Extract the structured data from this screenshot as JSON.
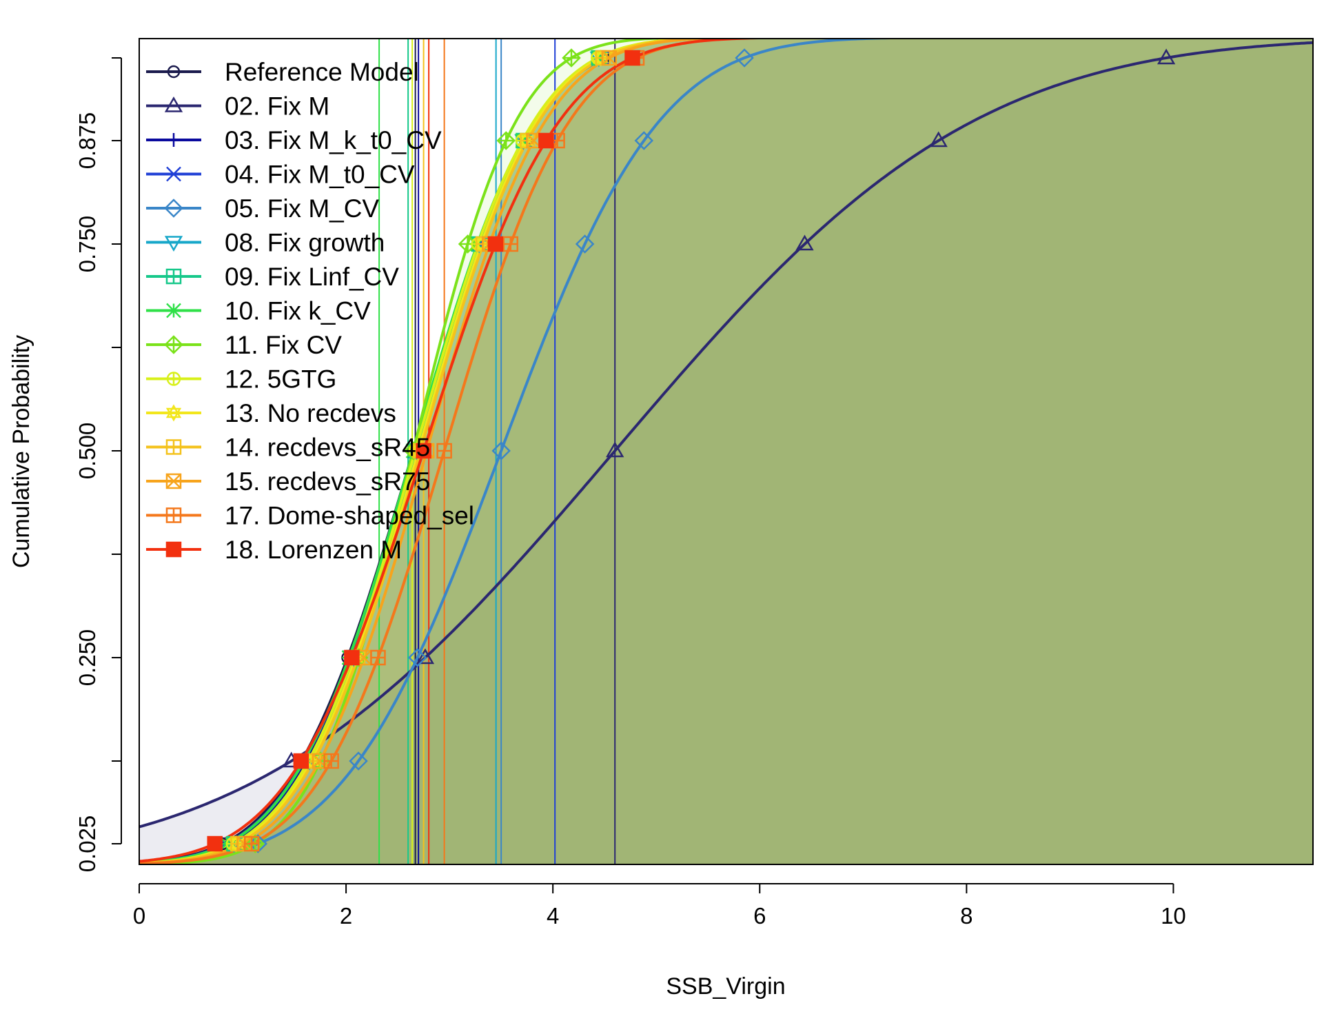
{
  "chart_data": {
    "type": "line",
    "title": "",
    "xlabel": "SSB_Virgin",
    "ylabel": "Cumulative Probability",
    "xlim": [
      0,
      11.35
    ],
    "ylim": [
      0,
      1
    ],
    "x_ticks": [
      "0",
      "2",
      "4",
      "6",
      "8",
      "10"
    ],
    "y_ticks": [
      "0.025",
      "0.250",
      "0.500",
      "0.750",
      "0.875"
    ],
    "grid": false,
    "legend_position": "top-left",
    "series": [
      {
        "name": "Reference Model",
        "color": "#1b1b4d",
        "marker": "circle",
        "median": 2.65,
        "sd": 0.94
      },
      {
        "name": "02. Fix M",
        "color": "#2b2770",
        "marker": "triangle",
        "median": 4.6,
        "sd": 2.72
      },
      {
        "name": "03. Fix M_k_t0_CV",
        "color": "#0a0a9e",
        "marker": "plus",
        "median": 2.68,
        "sd": 0.92
      },
      {
        "name": "04. Fix M_t0_CV",
        "color": "#1f3fd6",
        "marker": "x",
        "median": 2.66,
        "sd": 0.93
      },
      {
        "name": "05. Fix M_CV",
        "color": "#3a86c8",
        "marker": "diamond",
        "median": 3.5,
        "sd": 1.2
      },
      {
        "name": "08. Fix growth",
        "color": "#17a7c9",
        "marker": "triangle-down",
        "median": 2.68,
        "sd": 0.9
      },
      {
        "name": "09. Fix Linf_CV",
        "color": "#16c88a",
        "marker": "square-plus",
        "median": 2.68,
        "sd": 0.9
      },
      {
        "name": "10. Fix k_CV",
        "color": "#2fe048",
        "marker": "asterisk",
        "median": 2.65,
        "sd": 0.92
      },
      {
        "name": "11. Fix CV",
        "color": "#7be21a",
        "marker": "diamond-plus",
        "median": 2.65,
        "sd": 0.78
      },
      {
        "name": "12. 5GTG",
        "color": "#d8f01a",
        "marker": "circle-plus",
        "median": 2.67,
        "sd": 0.9
      },
      {
        "name": "13. No recdevs",
        "color": "#f2e61c",
        "marker": "star",
        "median": 2.7,
        "sd": 0.9
      },
      {
        "name": "14. recdevs_sR45",
        "color": "#f4c21c",
        "marker": "square-cross",
        "median": 2.72,
        "sd": 0.9
      },
      {
        "name": "15. recdevs_sR75",
        "color": "#f7a41c",
        "marker": "square-x",
        "median": 2.78,
        "sd": 0.9
      },
      {
        "name": "17. Dome-shaped_sel",
        "color": "#f4781c",
        "marker": "square-plus",
        "median": 2.95,
        "sd": 0.95
      },
      {
        "name": "18. Lorenzen M",
        "color": "#f2300f",
        "marker": "square",
        "median": 2.75,
        "sd": 1.03
      }
    ],
    "vertical_lines": [
      {
        "x": 2.32,
        "color": "#2fe048"
      },
      {
        "x": 2.6,
        "color": "#16c88a"
      },
      {
        "x": 2.64,
        "color": "#d8f01a"
      },
      {
        "x": 2.67,
        "color": "#1b1b4d"
      },
      {
        "x": 2.7,
        "color": "#0a0a9e"
      },
      {
        "x": 2.75,
        "color": "#f4c21c"
      },
      {
        "x": 2.8,
        "color": "#f2300f"
      },
      {
        "x": 2.95,
        "color": "#f4781c"
      },
      {
        "x": 3.45,
        "color": "#17a7c9"
      },
      {
        "x": 3.5,
        "color": "#3a86c8"
      },
      {
        "x": 4.02,
        "color": "#1f3fd6"
      },
      {
        "x": 4.6,
        "color": "#2b2770"
      }
    ]
  }
}
